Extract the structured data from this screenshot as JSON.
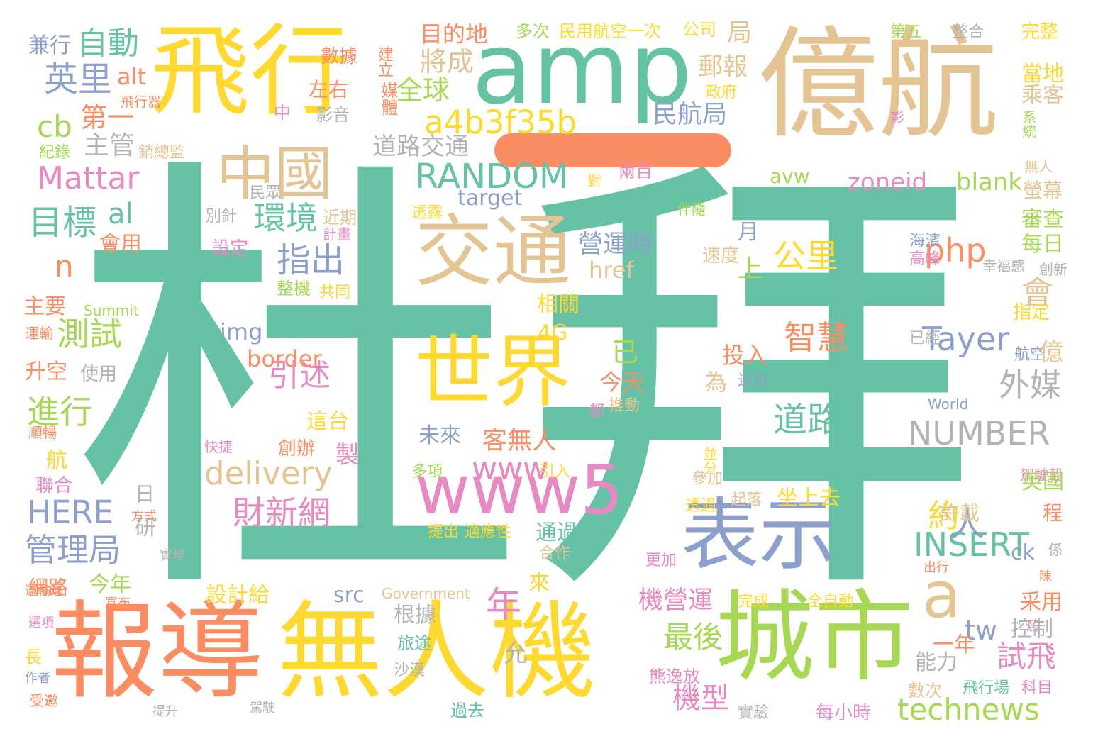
{
  "palette": {
    "teal": "#66c2a5",
    "orange": "#fc8d62",
    "blue": "#8da0cb",
    "pink": "#e78ac3",
    "green": "#a6d854",
    "yellow": "#ffd92f",
    "tan": "#e5c494",
    "gray": "#b3b3b3"
  },
  "words": [
    {
      "text": "杜拜",
      "color": "teal"
    },
    {
      "text": "億航",
      "color": "tan"
    },
    {
      "text": "飛行",
      "color": "yellow"
    },
    {
      "text": "amp",
      "color": "teal"
    },
    {
      "text": "報導",
      "color": "orange"
    },
    {
      "text": "無人機",
      "color": "yellow"
    },
    {
      "text": "城市",
      "color": "green"
    },
    {
      "text": "表示",
      "color": "blue"
    },
    {
      "text": "交通",
      "color": "tan"
    },
    {
      "text": "世界",
      "color": "yellow"
    },
    {
      "text": "中國",
      "color": "tan"
    },
    {
      "text": "www5",
      "color": "pink"
    },
    {
      "text": "a4b3f35b",
      "color": "yellow"
    },
    {
      "text": "RANDOM",
      "color": "teal"
    },
    {
      "text": "delivery",
      "color": "tan"
    },
    {
      "text": "technews",
      "color": "green"
    },
    {
      "text": "NUMBER",
      "color": "gray"
    },
    {
      "text": "INSERT",
      "color": "teal"
    },
    {
      "text": "Mattar",
      "color": "pink"
    },
    {
      "text": "HERE",
      "color": "blue"
    },
    {
      "text": "自動",
      "color": "teal"
    },
    {
      "text": "英里",
      "color": "blue"
    },
    {
      "text": "cb",
      "color": "green"
    },
    {
      "text": "目標",
      "color": "teal"
    },
    {
      "text": "環境",
      "color": "teal"
    },
    {
      "text": "指出",
      "color": "blue"
    },
    {
      "text": "引述",
      "color": "pink"
    },
    {
      "text": "測試",
      "color": "green"
    },
    {
      "text": "進行",
      "color": "green"
    },
    {
      "text": "管理局",
      "color": "blue"
    },
    {
      "text": "財新網",
      "color": "pink"
    },
    {
      "text": "道路",
      "color": "teal"
    },
    {
      "text": "外媒",
      "color": "gray"
    },
    {
      "text": "智慧",
      "color": "orange"
    },
    {
      "text": "Tayer",
      "color": "blue"
    },
    {
      "text": "php",
      "color": "orange"
    },
    {
      "text": "公里",
      "color": "yellow"
    },
    {
      "text": "a",
      "color": "tan"
    },
    {
      "text": "人",
      "color": "blue"
    },
    {
      "text": "年",
      "color": "pink"
    },
    {
      "text": "約",
      "color": "yellow"
    },
    {
      "text": "www",
      "color": "pink"
    },
    {
      "text": "客無人",
      "color": "orange"
    },
    {
      "text": "最後",
      "color": "green"
    },
    {
      "text": "機型",
      "color": "pink"
    },
    {
      "text": "試飛",
      "color": "pink"
    },
    {
      "text": "tw",
      "color": "blue"
    },
    {
      "text": "al",
      "color": "teal"
    },
    {
      "text": "n",
      "color": "orange"
    },
    {
      "text": "上",
      "color": "green"
    },
    {
      "text": "民航局",
      "color": "blue"
    },
    {
      "text": "郵報",
      "color": "tan"
    },
    {
      "text": "將成",
      "color": "tan"
    },
    {
      "text": "全球",
      "color": "green"
    },
    {
      "text": "第一",
      "color": "orange"
    },
    {
      "text": "主管",
      "color": "gray"
    },
    {
      "text": "道路交通",
      "color": "gray"
    },
    {
      "text": "營運時",
      "color": "blue"
    },
    {
      "text": "機營運",
      "color": "pink"
    },
    {
      "text": "alt",
      "color": "orange"
    },
    {
      "text": "兼行",
      "color": "blue"
    },
    {
      "text": "目的地",
      "color": "orange"
    },
    {
      "text": "左右",
      "color": "orange"
    },
    {
      "text": "數據",
      "color": "orange"
    },
    {
      "text": "建立",
      "color": "orange"
    },
    {
      "text": "媒體",
      "color": "orange"
    },
    {
      "text": "影音",
      "color": "gray"
    },
    {
      "text": "中",
      "color": "pink"
    },
    {
      "text": "多次",
      "color": "green"
    },
    {
      "text": "民用航空一次",
      "color": "yellow"
    },
    {
      "text": "公司",
      "color": "yellow"
    },
    {
      "text": "局",
      "color": "tan"
    },
    {
      "text": "第五",
      "color": "green"
    },
    {
      "text": "整合",
      "color": "gray"
    },
    {
      "text": "完整",
      "color": "yellow"
    },
    {
      "text": "當地",
      "color": "yellow"
    },
    {
      "text": "乘客",
      "color": "tan"
    },
    {
      "text": "政府",
      "color": "yellow"
    },
    {
      "text": "影",
      "color": "pink"
    },
    {
      "text": "系統",
      "color": "green"
    },
    {
      "text": "飛行器",
      "color": "orange"
    },
    {
      "text": "紀錄",
      "color": "green"
    },
    {
      "text": "銷總監",
      "color": "tan"
    },
    {
      "text": "zoneid",
      "color": "pink"
    },
    {
      "text": "blank",
      "color": "green"
    },
    {
      "text": "avw",
      "color": "green"
    },
    {
      "text": "target",
      "color": "blue"
    },
    {
      "text": "兩百",
      "color": "pink"
    },
    {
      "text": "無人",
      "color": "tan"
    },
    {
      "text": "螢幕",
      "color": "tan"
    },
    {
      "text": "審查",
      "color": "green"
    },
    {
      "text": "每日",
      "color": "green"
    },
    {
      "text": "會",
      "color": "tan"
    },
    {
      "text": "月",
      "color": "blue"
    },
    {
      "text": "會用",
      "color": "orange"
    },
    {
      "text": "設定",
      "color": "pink"
    },
    {
      "text": "近期",
      "color": "tan"
    },
    {
      "text": "計畫",
      "color": "pink"
    },
    {
      "text": "透露",
      "color": "yellow"
    },
    {
      "text": "別針",
      "color": "gray"
    },
    {
      "text": "民眾",
      "color": "gray"
    },
    {
      "text": "對",
      "color": "yellow"
    },
    {
      "text": "伴隨",
      "color": "green"
    },
    {
      "text": "速度",
      "color": "tan"
    },
    {
      "text": "海濱",
      "color": "blue"
    },
    {
      "text": "高峰",
      "color": "pink"
    },
    {
      "text": "幸福感",
      "color": "gray"
    },
    {
      "text": "創新",
      "color": "gray"
    },
    {
      "text": "href",
      "color": "tan"
    },
    {
      "text": "相關",
      "color": "yellow"
    },
    {
      "text": "4G",
      "color": "yellow"
    },
    {
      "text": "img",
      "color": "blue"
    },
    {
      "text": "border",
      "color": "orange"
    },
    {
      "text": "主要",
      "color": "orange"
    },
    {
      "text": "Summit",
      "color": "green"
    },
    {
      "text": "運輸",
      "color": "orange"
    },
    {
      "text": "整機",
      "color": "green"
    },
    {
      "text": "共同",
      "color": "yellow"
    },
    {
      "text": "升空",
      "color": "orange"
    },
    {
      "text": "使用",
      "color": "gray"
    },
    {
      "text": "已",
      "color": "green"
    },
    {
      "text": "投入",
      "color": "orange"
    },
    {
      "text": "今天",
      "color": "orange"
    },
    {
      "text": "為",
      "color": "tan"
    },
    {
      "text": "近日",
      "color": "blue"
    },
    {
      "text": "推動",
      "color": "tan"
    },
    {
      "text": "都",
      "color": "pink"
    },
    {
      "text": "指定",
      "color": "yellow"
    },
    {
      "text": "已經",
      "color": "gray"
    },
    {
      "text": "航空",
      "color": "blue"
    },
    {
      "text": "億",
      "color": "tan"
    },
    {
      "text": "World",
      "color": "blue"
    },
    {
      "text": "這台",
      "color": "yellow"
    },
    {
      "text": "未來",
      "color": "blue"
    },
    {
      "text": "創辦",
      "color": "orange"
    },
    {
      "text": "製",
      "color": "pink"
    },
    {
      "text": "順暢",
      "color": "orange"
    },
    {
      "text": "快捷",
      "color": "pink"
    },
    {
      "text": "航",
      "color": "yellow"
    },
    {
      "text": "聯合",
      "color": "pink"
    },
    {
      "text": "多項",
      "color": "green"
    },
    {
      "text": "引入",
      "color": "yellow"
    },
    {
      "text": "並分",
      "color": "yellow"
    },
    {
      "text": "參加",
      "color": "tan"
    },
    {
      "text": "駕駛載",
      "color": "pink"
    },
    {
      "text": "英國",
      "color": "green"
    },
    {
      "text": "日",
      "color": "gray"
    },
    {
      "text": "研",
      "color": "gray"
    },
    {
      "text": "方式",
      "color": "orange"
    },
    {
      "text": "實現",
      "color": "gray"
    },
    {
      "text": "坐上去",
      "color": "yellow"
    },
    {
      "text": "起落",
      "color": "tan"
    },
    {
      "text": "透過",
      "color": "yellow"
    },
    {
      "text": "許載",
      "color": "tan"
    },
    {
      "text": "程",
      "color": "orange"
    },
    {
      "text": "通過",
      "color": "teal"
    },
    {
      "text": "提出",
      "color": "yellow"
    },
    {
      "text": "適應性",
      "color": "yellow"
    },
    {
      "text": "合作",
      "color": "tan"
    },
    {
      "text": "係",
      "color": "gray"
    },
    {
      "text": "出行",
      "color": "orange"
    },
    {
      "text": "陳",
      "color": "orange"
    },
    {
      "text": "更加",
      "color": "pink"
    },
    {
      "text": "ck",
      "color": "blue"
    },
    {
      "text": "今年",
      "color": "green"
    },
    {
      "text": "網路",
      "color": "orange"
    },
    {
      "text": "設計給",
      "color": "yellow"
    },
    {
      "text": "src",
      "color": "blue"
    },
    {
      "text": "Government",
      "color": "tan"
    },
    {
      "text": "來",
      "color": "yellow"
    },
    {
      "text": "運輸運",
      "color": "orange"
    },
    {
      "text": "宣布",
      "color": "orange"
    },
    {
      "text": "選項",
      "color": "pink"
    },
    {
      "text": "根據",
      "color": "gray"
    },
    {
      "text": "完成",
      "color": "yellow"
    },
    {
      "text": "全自動",
      "color": "yellow"
    },
    {
      "text": "采用",
      "color": "orange"
    },
    {
      "text": "居",
      "color": "pink"
    },
    {
      "text": "一年",
      "color": "orange"
    },
    {
      "text": "控制",
      "color": "gray"
    },
    {
      "text": "能力",
      "color": "gray"
    },
    {
      "text": "旅途",
      "color": "teal"
    },
    {
      "text": "允",
      "color": "gray"
    },
    {
      "text": "長",
      "color": "yellow"
    },
    {
      "text": "作者",
      "color": "blue"
    },
    {
      "text": "受邀",
      "color": "orange"
    },
    {
      "text": "沙漠",
      "color": "gray"
    },
    {
      "text": "熊逸放",
      "color": "pink"
    },
    {
      "text": "數次",
      "color": "tan"
    },
    {
      "text": "飛行場",
      "color": "teal"
    },
    {
      "text": "科目",
      "color": "pink"
    },
    {
      "text": "提升",
      "color": "gray"
    },
    {
      "text": "駕駛",
      "color": "gray"
    },
    {
      "text": "過去",
      "color": "teal"
    },
    {
      "text": "實驗",
      "color": "gray"
    },
    {
      "text": "每小時",
      "color": "pink"
    }
  ]
}
